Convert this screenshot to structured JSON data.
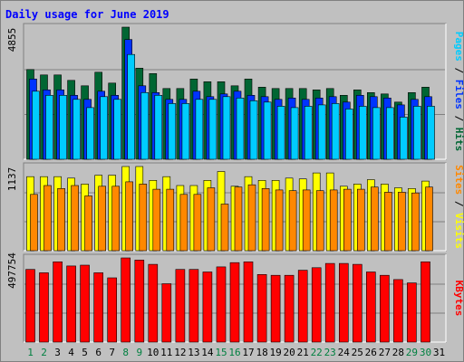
{
  "title": "Daily usage for June 2019",
  "colors": {
    "background": "#c0c0c0",
    "title": "#0000ff",
    "hits": "#006633",
    "files": "#0033ff",
    "pages": "#00ccff",
    "visits": "#ffff00",
    "sites": "#ff8800",
    "kbytes": "#ff0000",
    "weekend_label": "#008040",
    "weekday_label": "#000000"
  },
  "chart_data": {
    "type": "bar",
    "title": "Daily usage for June 2019",
    "categories": [
      "1",
      "2",
      "3",
      "4",
      "5",
      "6",
      "7",
      "8",
      "9",
      "10",
      "11",
      "12",
      "13",
      "14",
      "15",
      "16",
      "17",
      "18",
      "19",
      "20",
      "21",
      "22",
      "23",
      "24",
      "25",
      "26",
      "27",
      "28",
      "29",
      "30",
      "31"
    ],
    "weekend_days": [
      "1",
      "2",
      "8",
      "9",
      "15",
      "16",
      "22",
      "23",
      "29",
      "30"
    ],
    "panels": [
      {
        "name": "hits-files-pages",
        "max_label": "4855",
        "ylim": [
          0,
          4855
        ],
        "side_labels": [
          {
            "text": "Pages",
            "color": "#00ccff"
          },
          {
            "text": " / ",
            "color": "#000000"
          },
          {
            "text": "Files",
            "color": "#0033ff"
          },
          {
            "text": " / ",
            "color": "#000000"
          },
          {
            "text": "Hits",
            "color": "#006633"
          }
        ],
        "series": [
          {
            "name": "Hits",
            "color": "#006633",
            "values": [
              3300,
              3100,
              3100,
              2900,
              2700,
              3200,
              2800,
              4855,
              3350,
              3150,
              2600,
              2600,
              2950,
              2850,
              2850,
              2700,
              2950,
              2650,
              2600,
              2600,
              2600,
              2550,
              2600,
              2350,
              2550,
              2450,
              2400,
              2100,
              2450,
              2650,
              null
            ]
          },
          {
            "name": "Files",
            "color": "#0033ff",
            "values": [
              2950,
              2550,
              2550,
              2350,
              2200,
              2500,
              2350,
              4400,
              2700,
              2450,
              2200,
              2200,
              2500,
              2300,
              2400,
              2500,
              2350,
              2300,
              2200,
              2250,
              2200,
              2250,
              2300,
              2100,
              2350,
              2300,
              2250,
              2000,
              2200,
              2300,
              null
            ]
          },
          {
            "name": "Pages",
            "color": "#00ccff",
            "values": [
              2500,
              2350,
              2350,
              2200,
              1900,
              2300,
              2200,
              3850,
              2450,
              2350,
              2050,
              2050,
              2200,
              2200,
              2300,
              2250,
              2150,
              2100,
              1950,
              1900,
              1950,
              2000,
              2050,
              1850,
              1950,
              1900,
              1900,
              1550,
              1950,
              1950,
              null
            ]
          }
        ]
      },
      {
        "name": "visits-sites",
        "max_label": "1137",
        "ylim": [
          0,
          1137
        ],
        "side_labels": [
          {
            "text": "Sites",
            "color": "#ff8800"
          },
          {
            "text": " / ",
            "color": "#000000"
          },
          {
            "text": "Visits",
            "color": "#ffff00"
          }
        ],
        "series": [
          {
            "name": "Visits",
            "color": "#ffff00",
            "values": [
              1000,
              1000,
              1000,
              980,
              900,
              1020,
              1020,
              1137,
              1137,
              950,
              1000,
              880,
              880,
              950,
              1070,
              870,
              1000,
              950,
              950,
              980,
              970,
              1050,
              1050,
              870,
              900,
              960,
              900,
              850,
              840,
              940,
              null
            ]
          },
          {
            "name": "Sites",
            "color": "#ff8800",
            "values": [
              760,
              880,
              840,
              880,
              740,
              870,
              870,
              930,
              900,
              830,
              830,
              760,
              760,
              850,
              630,
              860,
              890,
              840,
              820,
              810,
              820,
              810,
              820,
              830,
              830,
              860,
              790,
              790,
              780,
              860,
              null
            ]
          }
        ]
      },
      {
        "name": "kbytes",
        "max_label": "497754",
        "ylim": [
          0,
          497754
        ],
        "side_labels": [
          {
            "text": "KBytes",
            "color": "#ff0000"
          }
        ],
        "series": [
          {
            "name": "KBytes",
            "color": "#ff0000",
            "values": [
              430000,
              410000,
              475000,
              450000,
              455000,
              410000,
              380000,
              497754,
              485000,
              460000,
              345000,
              430000,
              430000,
              415000,
              445000,
              470000,
              475000,
              400000,
              395000,
              395000,
              425000,
              440000,
              465000,
              465000,
              460000,
              415000,
              395000,
              370000,
              350000,
              475000,
              null
            ]
          }
        ]
      }
    ]
  }
}
